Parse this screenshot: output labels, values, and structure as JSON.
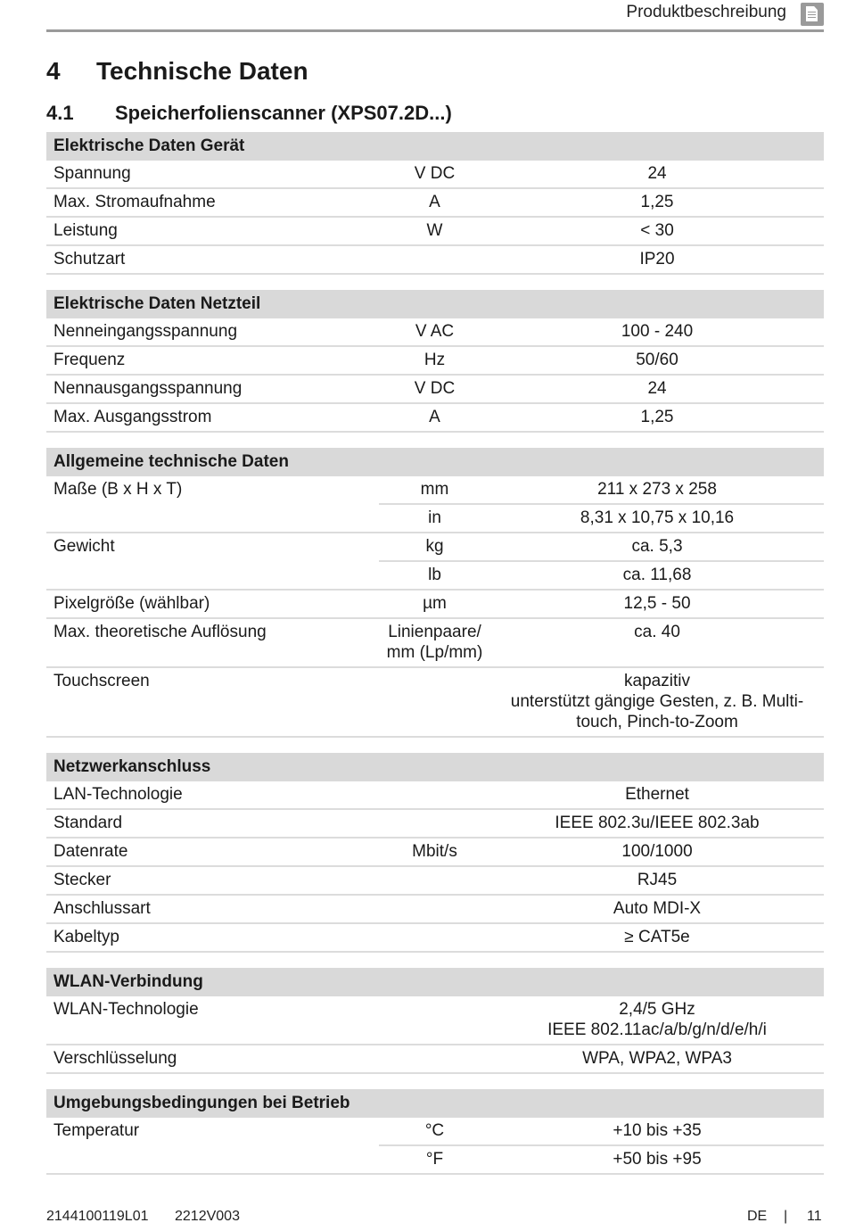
{
  "header": {
    "section": "Produktbeschreibung",
    "icon": "document-icon"
  },
  "chapter": {
    "number": "4",
    "title": "Technische Daten"
  },
  "subchapter": {
    "number": "4.1",
    "title": "Speicherfolienscanner (XPS07.2D...)"
  },
  "sections": [
    {
      "title": "Elektrische Daten Gerät",
      "rows": [
        {
          "label": "Spannung",
          "subs": [
            {
              "unit": "V DC",
              "value": "24"
            }
          ]
        },
        {
          "label": "Max. Stromaufnahme",
          "subs": [
            {
              "unit": "A",
              "value": "1,25"
            }
          ]
        },
        {
          "label": "Leistung",
          "subs": [
            {
              "unit": "W",
              "value": "< 30"
            }
          ]
        },
        {
          "label": "Schutzart",
          "subs": [
            {
              "unit": "",
              "value": "IP20"
            }
          ]
        }
      ]
    },
    {
      "title": "Elektrische Daten Netzteil",
      "rows": [
        {
          "label": "Nenneingangsspannung",
          "subs": [
            {
              "unit": "V AC",
              "value": "100 - 240"
            }
          ]
        },
        {
          "label": "Frequenz",
          "subs": [
            {
              "unit": "Hz",
              "value": "50/60"
            }
          ]
        },
        {
          "label": "Nennausgangsspannung",
          "subs": [
            {
              "unit": "V DC",
              "value": "24"
            }
          ]
        },
        {
          "label": "Max. Ausgangsstrom",
          "subs": [
            {
              "unit": "A",
              "value": "1,25"
            }
          ]
        }
      ]
    },
    {
      "title": "Allgemeine technische Daten",
      "rows": [
        {
          "label": "Maße (B x H x T)",
          "subs": [
            {
              "unit": "mm",
              "value": "211 x 273 x 258"
            },
            {
              "unit": "in",
              "value": "8,31 x 10,75 x 10,16"
            }
          ]
        },
        {
          "label": "Gewicht",
          "subs": [
            {
              "unit": "kg",
              "value": "ca. 5,3"
            },
            {
              "unit": "lb",
              "value": "ca. 11,68"
            }
          ]
        },
        {
          "label": "Pixelgröße (wählbar)",
          "subs": [
            {
              "unit": "µm",
              "value": "12,5 - 50"
            }
          ]
        },
        {
          "label": "Max. theoretische Auflösung",
          "subs": [
            {
              "unit": "Linienpaare/\nmm (Lp/mm)",
              "value": "ca. 40"
            }
          ]
        },
        {
          "label": "Touchscreen",
          "subs": [
            {
              "unit": "",
              "value": "kapazitiv\nunterstützt gängige Gesten, z. B. Multi-\ntouch, Pinch-to-Zoom"
            }
          ]
        }
      ]
    },
    {
      "title": "Netzwerkanschluss",
      "rows": [
        {
          "label": "LAN-Technologie",
          "subs": [
            {
              "unit": "",
              "value": "Ethernet"
            }
          ]
        },
        {
          "label": "Standard",
          "subs": [
            {
              "unit": "",
              "value": "IEEE 802.3u/IEEE 802.3ab"
            }
          ]
        },
        {
          "label": "Datenrate",
          "subs": [
            {
              "unit": "Mbit/s",
              "value": "100/1000"
            }
          ]
        },
        {
          "label": "Stecker",
          "subs": [
            {
              "unit": "",
              "value": "RJ45"
            }
          ]
        },
        {
          "label": "Anschlussart",
          "subs": [
            {
              "unit": "",
              "value": "Auto MDI-X"
            }
          ]
        },
        {
          "label": "Kabeltyp",
          "subs": [
            {
              "unit": "",
              "value": "≥ CAT5e"
            }
          ]
        }
      ]
    },
    {
      "title": "WLAN-Verbindung",
      "rows": [
        {
          "label": "WLAN-Technologie",
          "subs": [
            {
              "unit": "",
              "value": "2,4/5 GHz\nIEEE 802.11ac/a/b/g/n/d/e/h/i"
            }
          ]
        },
        {
          "label": "Verschlüsselung",
          "subs": [
            {
              "unit": "",
              "value": "WPA, WPA2, WPA3"
            }
          ]
        }
      ]
    },
    {
      "title": "Umgebungsbedingungen bei Betrieb",
      "rows": [
        {
          "label": "Temperatur",
          "subs": [
            {
              "unit": "°C",
              "value": "+10 bis +35"
            },
            {
              "unit": "°F",
              "value": "+50 bis +95"
            }
          ]
        }
      ]
    }
  ],
  "footer": {
    "doc_number": "2144100119L01",
    "version": "2212V003",
    "language": "DE",
    "separator": "|",
    "page": "11"
  }
}
